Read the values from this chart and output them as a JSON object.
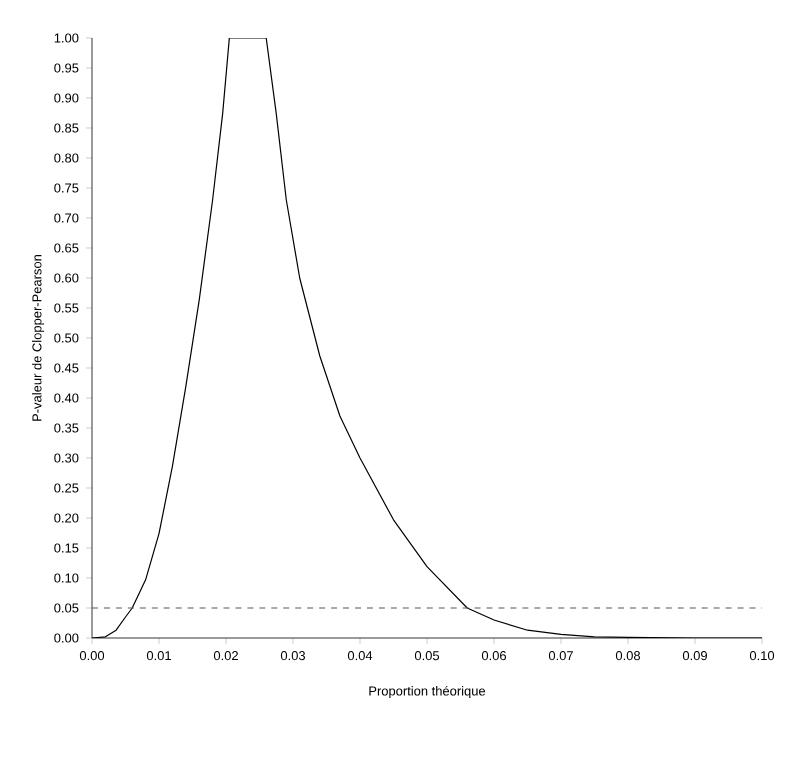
{
  "chart_data": {
    "type": "line",
    "xlabel": "Proportion théorique",
    "ylabel": "P-valeur de Clopper-Pearson",
    "x": [
      0,
      0.002,
      0.0036,
      0.005,
      0.006,
      0.008,
      0.01,
      0.012,
      0.014,
      0.016,
      0.018,
      0.0195,
      0.0205,
      0.026,
      0.0275,
      0.029,
      0.031,
      0.034,
      0.037,
      0.04,
      0.045,
      0.05,
      0.056,
      0.06,
      0.065,
      0.07,
      0.075,
      0.08,
      0.09,
      0.1
    ],
    "series": [
      {
        "color": "#000000",
        "values": [
          0,
          0.002,
          0.013,
          0.035,
          0.05,
          0.097,
          0.174,
          0.286,
          0.419,
          0.563,
          0.73,
          0.874,
          1.0,
          1.0,
          0.874,
          0.73,
          0.6,
          0.47,
          0.37,
          0.3,
          0.197,
          0.119,
          0.05,
          0.03,
          0.013,
          0.006,
          0.002,
          0.001,
          0,
          0
        ]
      }
    ],
    "xlim": [
      0,
      0.1
    ],
    "ylim": [
      0,
      1
    ],
    "xticks": [
      {
        "value": 0,
        "label": "0.00"
      },
      {
        "value": 0.01,
        "label": "0.01"
      },
      {
        "value": 0.02,
        "label": "0.02"
      },
      {
        "value": 0.03,
        "label": "0.03"
      },
      {
        "value": 0.04,
        "label": "0.04"
      },
      {
        "value": 0.05,
        "label": "0.05"
      },
      {
        "value": 0.06,
        "label": "0.06"
      },
      {
        "value": 0.07,
        "label": "0.07"
      },
      {
        "value": 0.08,
        "label": "0.08"
      },
      {
        "value": 0.09,
        "label": "0.09"
      },
      {
        "value": 0.1,
        "label": "0.10"
      }
    ],
    "yticks": [
      {
        "value": 0,
        "label": "0.00"
      },
      {
        "value": 0.05,
        "label": "0.05"
      },
      {
        "value": 0.1,
        "label": "0.10"
      },
      {
        "value": 0.15,
        "label": "0.15"
      },
      {
        "value": 0.2,
        "label": "0.20"
      },
      {
        "value": 0.25,
        "label": "0.25"
      },
      {
        "value": 0.3,
        "label": "0.30"
      },
      {
        "value": 0.35,
        "label": "0.35"
      },
      {
        "value": 0.4,
        "label": "0.40"
      },
      {
        "value": 0.45,
        "label": "0.45"
      },
      {
        "value": 0.5,
        "label": "0.50"
      },
      {
        "value": 0.55,
        "label": "0.55"
      },
      {
        "value": 0.6,
        "label": "0.60"
      },
      {
        "value": 0.65,
        "label": "0.65"
      },
      {
        "value": 0.7,
        "label": "0.70"
      },
      {
        "value": 0.75,
        "label": "0.75"
      },
      {
        "value": 0.8,
        "label": "0.80"
      },
      {
        "value": 0.85,
        "label": "0.85"
      },
      {
        "value": 0.9,
        "label": "0.90"
      },
      {
        "value": 0.95,
        "label": "0.95"
      },
      {
        "value": 1,
        "label": "1.00"
      }
    ],
    "ref_lines": [
      {
        "axis": "y",
        "value": 0.05,
        "color": "#555555",
        "line_style": "dashed"
      }
    ],
    "grid": false,
    "marker": "none",
    "line_style": "solid"
  }
}
